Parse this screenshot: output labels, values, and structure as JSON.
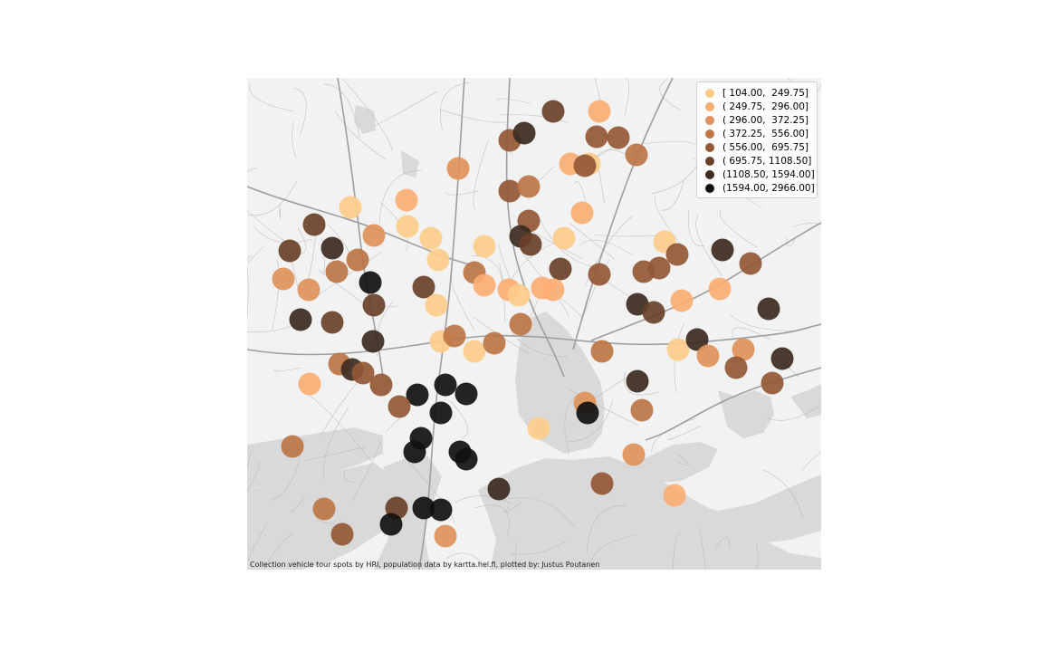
{
  "attribution": "Collection vehicle tour spots by HRI, population data by kartta.hel.fi, plotted by: Justus Poutanen",
  "colors": {
    "land": "#f2f2f2",
    "water": "#d9d9d9",
    "road": "#b5b5b5",
    "major_road": "#9e9e9e"
  },
  "legend": [
    {
      "label": "[ 104.00,  249.75]",
      "color": "#fdcc8a"
    },
    {
      "label": "( 249.75,  296.00]",
      "color": "#fcae73"
    },
    {
      "label": "( 296.00,  372.25]",
      "color": "#e0925a"
    },
    {
      "label": "( 372.25,  556.00]",
      "color": "#bd7546"
    },
    {
      "label": "( 556.00,  695.75]",
      "color": "#935836"
    },
    {
      "label": "( 695.75, 1108.50]",
      "color": "#6a4129"
    },
    {
      "label": "(1108.50, 1594.00]",
      "color": "#3d2a20"
    },
    {
      "label": "(1594.00, 2966.00]",
      "color": "#111111"
    }
  ],
  "chart_data": {
    "type": "scatter",
    "title": "",
    "xlabel": "",
    "ylabel": "",
    "legend_position": "top-right",
    "grid": false,
    "classes": [
      "[ 104.00,  249.75]",
      "( 249.75,  296.00]",
      "( 296.00,  372.25]",
      "( 372.25,  556.00]",
      "( 556.00,  695.75]",
      "( 695.75, 1108.50]",
      "(1108.50, 1594.00]",
      "(1594.00, 2966.00]"
    ]
  }
}
